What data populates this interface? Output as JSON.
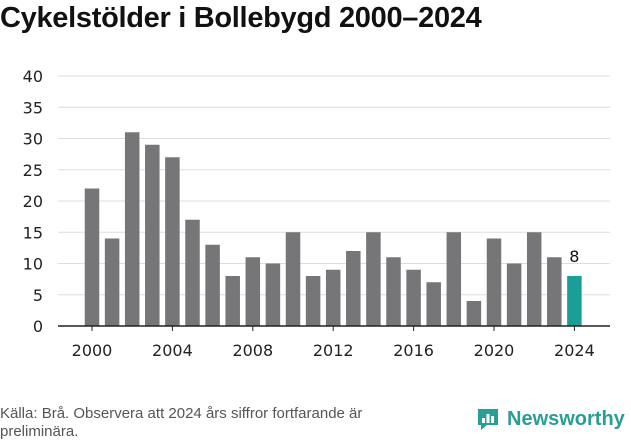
{
  "chart_data": {
    "type": "bar",
    "title": "Cykelstölder i Bollebygd 2000–2024",
    "xlabel": "",
    "ylabel": "",
    "ylim": [
      0,
      40
    ],
    "yticks": [
      0,
      5,
      10,
      15,
      20,
      25,
      30,
      35,
      40
    ],
    "categories": [
      "2000",
      "2001",
      "2002",
      "2003",
      "2004",
      "2005",
      "2006",
      "2007",
      "2008",
      "2009",
      "2010",
      "2011",
      "2012",
      "2013",
      "2014",
      "2015",
      "2016",
      "2017",
      "2018",
      "2019",
      "2020",
      "2021",
      "2022",
      "2023",
      "2024"
    ],
    "values": [
      22,
      14,
      31,
      29,
      27,
      17,
      13,
      8,
      11,
      10,
      15,
      8,
      9,
      12,
      15,
      11,
      9,
      7,
      15,
      4,
      14,
      10,
      15,
      11,
      8
    ],
    "xtick_labels": [
      "2000",
      "2004",
      "2008",
      "2012",
      "2016",
      "2020",
      "2024"
    ],
    "highlight": {
      "category": "2024",
      "label": "8"
    },
    "colors": {
      "bar": "#767679",
      "highlight": "#1a9e96",
      "grid": "#dddddd",
      "axis": "#222222"
    },
    "grid": true
  },
  "footer": {
    "source": "Källa: Brå. Observera att 2024 års siffror fortfarande är preliminära.",
    "brand": "Newsworthy",
    "brand_icon": "newsworthy-logo-icon",
    "brand_color": "#2a9d99"
  }
}
